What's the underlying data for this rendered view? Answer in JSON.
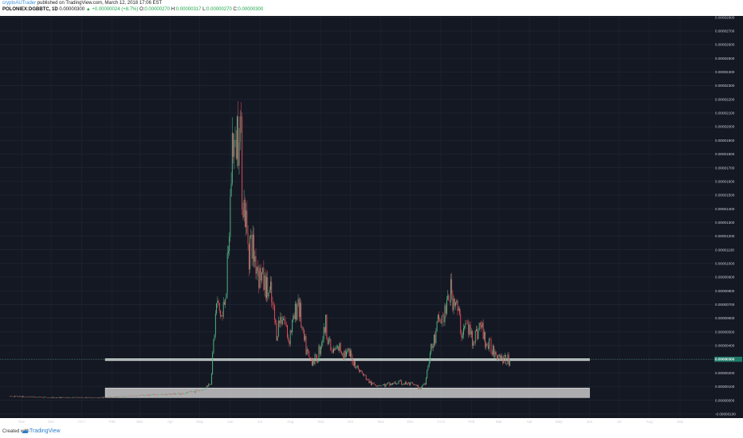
{
  "header": {
    "author": "cryptoAUTrader",
    "published_text": "published on TradingView.com, March 12, 2018 17:06 EST",
    "symbol": "POLONIEX:DGBBTC, 1D",
    "last_price": "0.00000300",
    "change": "▲ +0.00000024 (+8.7%)",
    "o_label": "O:",
    "o_value": "0.00000270",
    "h_label": "H:",
    "h_value": "0.00000317",
    "l_label": "L:",
    "l_value": "0.00000270",
    "c_label": "C:",
    "c_value": "0.00000300"
  },
  "footer": {
    "created_with": "Created with",
    "brand": "TradingView"
  },
  "colors": {
    "background": "#141823",
    "bullish": "#53b987",
    "bearish": "#eb4d5c",
    "zone_fill": "#c8c8c8",
    "price_label": "#1f7a6a"
  },
  "chart_data": {
    "type": "candlestick",
    "y_unit": "BTC",
    "y_ticks": [
      "0.00002800",
      "0.00002700",
      "0.00002600",
      "0.00002500",
      "0.00002400",
      "0.00002300",
      "0.00002200",
      "0.00002100",
      "0.00002000",
      "0.00001900",
      "0.00001800",
      "0.00001700",
      "0.00001600",
      "0.00001500",
      "0.00001400",
      "0.00001300",
      "0.00001200",
      "0.00001100",
      "0.00001000",
      "0.00000900",
      "0.00000800",
      "0.00000700",
      "0.00000600",
      "0.00000500",
      "0.00000400",
      "0.00000300",
      "0.00000200",
      "0.00000100",
      "0.00000000",
      "-0.00000100"
    ],
    "ylim": [
      -1.3e-06,
      2.81e-05
    ],
    "x_ticks": [
      "Nov",
      "Dec",
      "2017",
      "Feb",
      "Mar",
      "Apr",
      "May",
      "Jun",
      "Jul",
      "Aug",
      "Sep",
      "Oct",
      "Nov",
      "Dec",
      "2018",
      "Feb",
      "Mar",
      "Apr",
      "May",
      "Jun",
      "Jul",
      "Aug",
      "Sep"
    ],
    "x_years": [
      "2017",
      "2018"
    ],
    "current_price_label": "0.00000300",
    "zones": [
      {
        "name": "support-line",
        "y_from": 2.9e-06,
        "y_to": 3.05e-06,
        "x_from": "2017-01-25",
        "x_to": "2018-06-01"
      },
      {
        "name": "support-zone",
        "y_from": 2e-07,
        "y_to": 9e-07,
        "x_from": "2017-01-25",
        "x_to": "2018-06-01"
      }
    ],
    "price_path": [
      [
        "2016-10-20",
        3e-07
      ],
      [
        "2016-12-01",
        2e-07
      ],
      [
        "2017-01-20",
        2e-07
      ],
      [
        "2017-03-01",
        3.5e-07
      ],
      [
        "2017-04-15",
        5e-07
      ],
      [
        "2017-05-05",
        8e-07
      ],
      [
        "2017-05-12",
        1.3e-06
      ],
      [
        "2017-05-18",
        7e-06
      ],
      [
        "2017-05-24",
        6e-06
      ],
      [
        "2017-05-30",
        1e-05
      ],
      [
        "2017-06-03",
        1.9e-05
      ],
      [
        "2017-06-06",
        1.8e-05
      ],
      [
        "2017-06-10",
        2.2e-05
      ],
      [
        "2017-06-14",
        1.5e-05
      ],
      [
        "2017-06-18",
        1.2e-05
      ],
      [
        "2017-06-24",
        1.1e-05
      ],
      [
        "2017-06-30",
        9.5e-06
      ],
      [
        "2017-07-06",
        8.5e-06
      ],
      [
        "2017-07-12",
        7.5e-06
      ],
      [
        "2017-07-18",
        5e-06
      ],
      [
        "2017-07-24",
        6.5e-06
      ],
      [
        "2017-07-30",
        4.5e-06
      ],
      [
        "2017-08-05",
        6e-06
      ],
      [
        "2017-08-09",
        7.5e-06
      ],
      [
        "2017-08-14",
        4.5e-06
      ],
      [
        "2017-08-20",
        3e-06
      ],
      [
        "2017-08-28",
        3e-06
      ],
      [
        "2017-09-02",
        4.5e-06
      ],
      [
        "2017-09-06",
        5.5e-06
      ],
      [
        "2017-09-12",
        3.5e-06
      ],
      [
        "2017-09-20",
        3.8e-06
      ],
      [
        "2017-10-01",
        3.2e-06
      ],
      [
        "2017-10-10",
        2.2e-06
      ],
      [
        "2017-10-22",
        1.2e-06
      ],
      [
        "2017-11-05",
        1.1e-06
      ],
      [
        "2017-11-20",
        1.3e-06
      ],
      [
        "2017-12-05",
        1.1e-06
      ],
      [
        "2017-12-10",
        8.5e-07
      ],
      [
        "2017-12-16",
        1.3e-06
      ],
      [
        "2017-12-20",
        3.2e-06
      ],
      [
        "2017-12-26",
        4.5e-06
      ],
      [
        "2017-12-30",
        5.8e-06
      ],
      [
        "2018-01-03",
        6e-06
      ],
      [
        "2018-01-07",
        6.8e-06
      ],
      [
        "2018-01-10",
        7.9e-06
      ],
      [
        "2018-01-16",
        7.2e-06
      ],
      [
        "2018-01-22",
        5e-06
      ],
      [
        "2018-01-27",
        5.5e-06
      ],
      [
        "2018-02-03",
        4.5e-06
      ],
      [
        "2018-02-10",
        5.5e-06
      ],
      [
        "2018-02-17",
        4e-06
      ],
      [
        "2018-02-24",
        3.7e-06
      ],
      [
        "2018-03-02",
        3.3e-06
      ],
      [
        "2018-03-07",
        2.9e-06
      ],
      [
        "2018-03-12",
        3e-06
      ]
    ]
  }
}
